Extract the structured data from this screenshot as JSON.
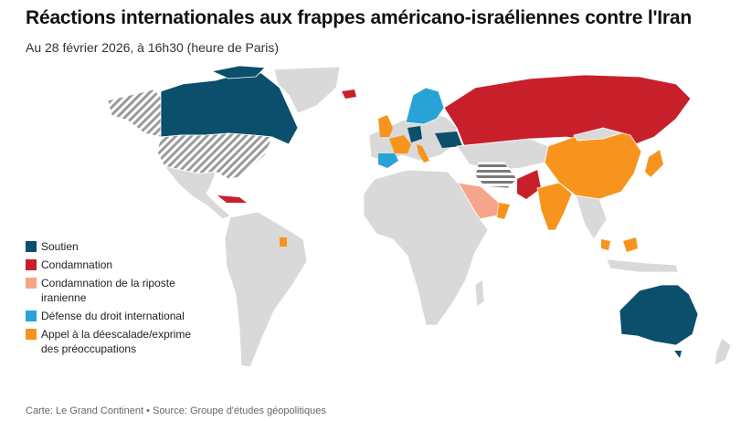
{
  "header": {
    "title": "Réactions internationales aux frappes américano-israéliennes contre l'Iran",
    "subtitle": "Au 28 février 2026, à 16h30 (heure de Paris)"
  },
  "colors": {
    "soutien": "#0b4f6c",
    "condamnation": "#c8202a",
    "condamnation_riposte": "#f4a58a",
    "defense_droit": "#29a3d6",
    "appel": "#f7941d",
    "land": "#d9d9d9",
    "hatch": "#9a9a9a"
  },
  "legend": [
    {
      "key": "soutien",
      "label": "Soutien"
    },
    {
      "key": "condamnation",
      "label": "Condamnation"
    },
    {
      "key": "condamnation_riposte",
      "label": "Condamnation de la riposte iranienne"
    },
    {
      "key": "defense_droit",
      "label": "Défense du droit international"
    },
    {
      "key": "appel",
      "label": "Appel à la déescalade/exprime des préoccupations"
    }
  ],
  "footer": {
    "source": "Carte: Le Grand Continent  • Source: Groupe d'études géopolitiques"
  }
}
